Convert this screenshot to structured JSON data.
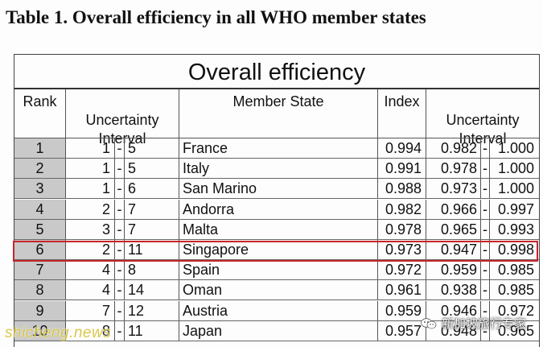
{
  "caption": "Table 1. Overall efficiency in all WHO member states",
  "table_title": "Overall efficiency",
  "headers": {
    "rank": "Rank",
    "uncertainty_interval": "Uncertainty\nInterval",
    "member_state": "Member State",
    "index": "Index",
    "index_uncertainty_interval": "Uncertainty\nInterval"
  },
  "rows": [
    {
      "rank": "1",
      "lo": "1",
      "hi": "5",
      "state": "France",
      "index": "0.994",
      "ilo": "0.982",
      "ihi": "1.000"
    },
    {
      "rank": "2",
      "lo": "1",
      "hi": "5",
      "state": "Italy",
      "index": "0.991",
      "ilo": "0.978",
      "ihi": "1.000"
    },
    {
      "rank": "3",
      "lo": "1",
      "hi": "6",
      "state": "San Marino",
      "index": "0.988",
      "ilo": "0.973",
      "ihi": "1.000"
    },
    {
      "rank": "4",
      "lo": "2",
      "hi": "7",
      "state": "Andorra",
      "index": "0.982",
      "ilo": "0.966",
      "ihi": "0.997"
    },
    {
      "rank": "5",
      "lo": "3",
      "hi": "7",
      "state": "Malta",
      "index": "0.978",
      "ilo": "0.965",
      "ihi": "0.993"
    },
    {
      "rank": "6",
      "lo": "2",
      "hi": "11",
      "state": "Singapore",
      "index": "0.973",
      "ilo": "0.947",
      "ihi": "0.998"
    },
    {
      "rank": "7",
      "lo": "4",
      "hi": "8",
      "state": "Spain",
      "index": "0.972",
      "ilo": "0.959",
      "ihi": "0.985"
    },
    {
      "rank": "8",
      "lo": "4",
      "hi": "14",
      "state": "Oman",
      "index": "0.961",
      "ilo": "0.938",
      "ihi": "0.985"
    },
    {
      "rank": "9",
      "lo": "7",
      "hi": "12",
      "state": "Austria",
      "index": "0.959",
      "ilo": "0.946",
      "ihi": "0.972"
    },
    {
      "rank": "10",
      "lo": "8",
      "hi": "11",
      "state": "Japan",
      "index": "0.957",
      "ilo": "0.948",
      "ihi": "0.965"
    }
  ],
  "dash": "-",
  "highlighted_rank": "6",
  "highlight_color": "#c7252d",
  "watermark_left": "shicheng.news",
  "watermark_right": "新加坡旅行专家",
  "watermark_right_icon": "wechat-icon"
}
